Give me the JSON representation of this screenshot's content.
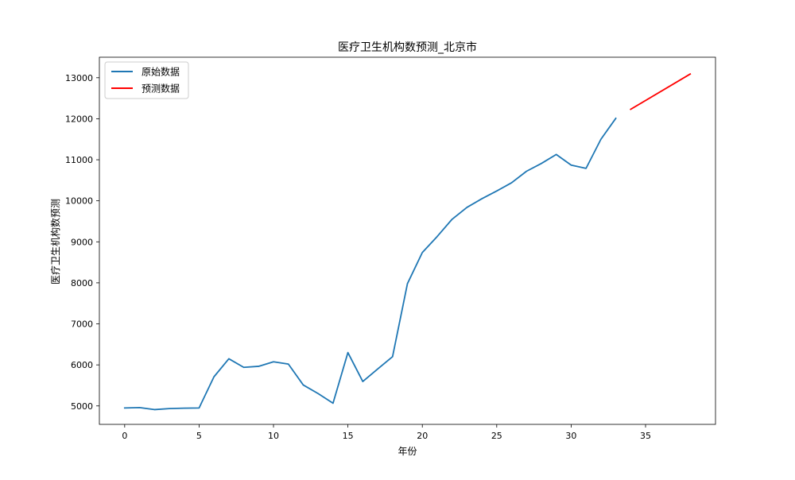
{
  "chart_data": {
    "type": "line",
    "title": "医疗卫生机构数预测_北京市",
    "xlabel": "年份",
    "ylabel": "医疗卫生机构数预测",
    "xlim": [
      -1.7,
      39.7
    ],
    "ylim": [
      4550,
      13500
    ],
    "xticks": [
      0,
      5,
      10,
      15,
      20,
      25,
      30,
      35
    ],
    "yticks": [
      5000,
      6000,
      7000,
      8000,
      9000,
      10000,
      11000,
      12000,
      13000
    ],
    "grid": false,
    "legend_position": "top-left",
    "series": [
      {
        "name": "原始数据",
        "color": "#1f77b4",
        "x": [
          0,
          1,
          2,
          3,
          4,
          5,
          6,
          7,
          8,
          9,
          10,
          11,
          12,
          13,
          14,
          15,
          16,
          17,
          18,
          19,
          20,
          21,
          22,
          23,
          24,
          25,
          26,
          27,
          28,
          29,
          30,
          31,
          32,
          33
        ],
        "values": [
          4950,
          4960,
          4910,
          4935,
          4945,
          4950,
          5710,
          6150,
          5940,
          5965,
          6075,
          6020,
          5510,
          5300,
          5065,
          6300,
          5595,
          5900,
          6200,
          7980,
          8740,
          9130,
          9550,
          9840,
          10050,
          10240,
          10440,
          10720,
          10910,
          11130,
          10870,
          10790,
          11500,
          12010
        ]
      },
      {
        "name": "预测数据",
        "color": "#ff0000",
        "x": [
          34,
          38
        ],
        "values": [
          12230,
          13090
        ]
      }
    ]
  }
}
